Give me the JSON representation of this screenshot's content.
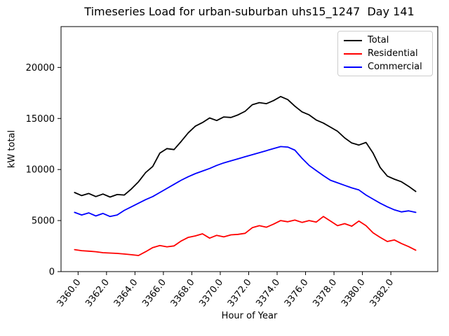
{
  "chart_data": {
    "type": "line",
    "title": "Timeseries Load for urban-suburban uhs15_1247  Day 141",
    "xlabel": "Hour of Year",
    "ylabel": "kW total",
    "xlim": [
      3358.8,
      3385.3
    ],
    "ylim": [
      0,
      24000
    ],
    "grid": false,
    "legend_position": "upper right",
    "x_ticks": {
      "positions": [
        3360,
        3362,
        3364,
        3366,
        3368,
        3370,
        3372,
        3374,
        3376,
        3378,
        3380,
        3382
      ],
      "labels": [
        "3360.0",
        "3362.0",
        "3364.0",
        "3366.0",
        "3368.0",
        "3370.0",
        "3372.0",
        "3374.0",
        "3376.0",
        "3378.0",
        "3380.0",
        "3382.0"
      ]
    },
    "y_ticks": {
      "positions": [
        0,
        5000,
        10000,
        15000,
        20000
      ],
      "labels": [
        "0",
        "5000",
        "10000",
        "15000",
        "20000"
      ]
    },
    "x": [
      3359.75,
      3360.25,
      3360.75,
      3361.25,
      3361.75,
      3362.25,
      3362.75,
      3363.25,
      3363.75,
      3364.25,
      3364.75,
      3365.25,
      3365.75,
      3366.25,
      3366.75,
      3367.25,
      3367.75,
      3368.25,
      3368.75,
      3369.25,
      3369.75,
      3370.25,
      3370.75,
      3371.25,
      3371.75,
      3372.25,
      3372.75,
      3373.25,
      3373.75,
      3374.25,
      3374.75,
      3375.25,
      3375.75,
      3376.25,
      3376.75,
      3377.25,
      3377.75,
      3378.25,
      3378.75,
      3379.25,
      3379.75,
      3380.25,
      3380.75,
      3381.25,
      3381.75,
      3382.25,
      3382.75,
      3383.25,
      3383.75
    ],
    "series": [
      {
        "name": "Total",
        "color": "#000000",
        "values": [
          7750,
          7450,
          7650,
          7350,
          7600,
          7300,
          7550,
          7500,
          8100,
          8800,
          9700,
          10300,
          11600,
          12050,
          11950,
          12750,
          13600,
          14250,
          14600,
          15050,
          14800,
          15150,
          15100,
          15350,
          15700,
          16350,
          16550,
          16450,
          16750,
          17150,
          16850,
          16200,
          15650,
          15350,
          14850,
          14550,
          14150,
          13750,
          13100,
          12600,
          12400,
          12650,
          11600,
          10200,
          9350,
          9050,
          8800,
          8350,
          7850
        ]
      },
      {
        "name": "Residential",
        "color": "#ff0000",
        "values": [
          2150,
          2050,
          2000,
          1950,
          1850,
          1820,
          1780,
          1720,
          1650,
          1580,
          1950,
          2350,
          2550,
          2430,
          2520,
          3000,
          3350,
          3500,
          3700,
          3280,
          3550,
          3400,
          3600,
          3650,
          3750,
          4300,
          4500,
          4350,
          4650,
          5000,
          4880,
          5050,
          4820,
          5000,
          4850,
          5400,
          4950,
          4500,
          4700,
          4450,
          4950,
          4500,
          3800,
          3350,
          2950,
          3100,
          2750,
          2450,
          2100
        ]
      },
      {
        "name": "Commercial",
        "color": "#0000ff",
        "values": [
          5800,
          5550,
          5750,
          5450,
          5700,
          5400,
          5550,
          6000,
          6350,
          6700,
          7050,
          7350,
          7750,
          8150,
          8550,
          8950,
          9300,
          9600,
          9850,
          10100,
          10400,
          10650,
          10850,
          11050,
          11250,
          11450,
          11650,
          11850,
          12050,
          12250,
          12200,
          11900,
          11100,
          10400,
          9900,
          9400,
          8950,
          8700,
          8450,
          8200,
          8000,
          7500,
          7100,
          6700,
          6350,
          6050,
          5850,
          5950,
          5800
        ]
      }
    ]
  }
}
